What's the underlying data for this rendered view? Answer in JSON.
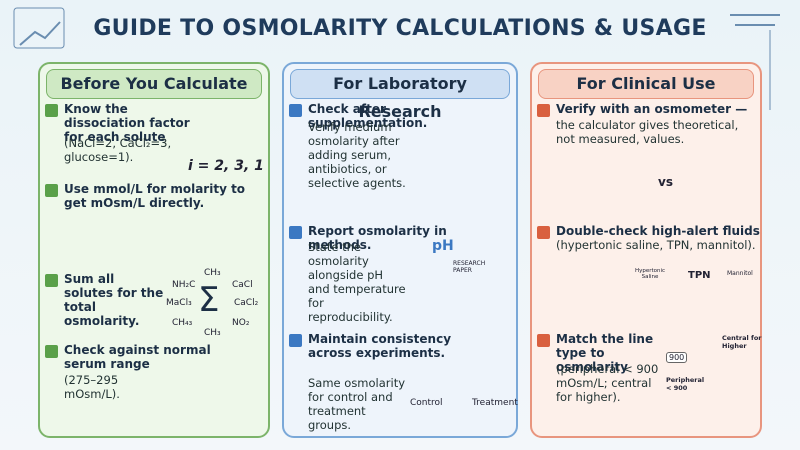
{
  "header": {
    "title": "GUIDE TO OSMOLARITY CALCULATIONS & USAGE"
  },
  "columns": [
    {
      "heading": "Before You Calculate",
      "items": [
        {
          "title": "Know the dissociation factor for each solute",
          "body": "(NaCl=2, CaCl₂=3, glucose=1).",
          "labels": [
            "i = 2, 3,   1"
          ]
        },
        {
          "title": "Use mmol/L for molarity to get mOsm/L directly."
        },
        {
          "title": "Sum all solutes for the total osmolarity.",
          "labels": [
            "NH₂C",
            "CH₃",
            "CaCl",
            "MaCl₃",
            "Σ",
            "CaCl₂",
            "CH₄₃",
            "CH₃",
            "NO₂"
          ]
        },
        {
          "title": "Check against normal serum range",
          "body": "(275–295 mOsm/L)."
        }
      ]
    },
    {
      "heading": "For Laboratory Research",
      "items": [
        {
          "title": "Check after supplementation.",
          "body": "Verify medium osmolarity after adding serum, antibiotics, or selective agents."
        },
        {
          "title": "Report osmolarity in methods.",
          "body": "State the osmolarity alongside pH and temperature for reproducibility.",
          "labels": [
            "pH",
            "RESEARCH PAPER"
          ]
        },
        {
          "title": "Maintain consistency across experiments.",
          "body": "Same osmolarity for control and treatment groups.",
          "labels": [
            "Control",
            "Treatment"
          ]
        }
      ]
    },
    {
      "heading": "For Clinical Use",
      "items": [
        {
          "title": "Verify with an osmometer —",
          "body": "the calculator gives theoretical, not measured, values.",
          "labels": [
            "vs"
          ]
        },
        {
          "title": "Double-check high-alert fluids",
          "body": "(hypertonic saline, TPN, mannitol).",
          "labels": [
            "Hypertonic Saline",
            "TPN",
            "Mannitol"
          ]
        },
        {
          "title": "Match the line type to osmolarity",
          "body": "(peripheral < 900 mOsm/L; central for higher).",
          "labels": [
            "900",
            "Peripheral < 900",
            "Central for Higher"
          ]
        }
      ]
    }
  ]
}
